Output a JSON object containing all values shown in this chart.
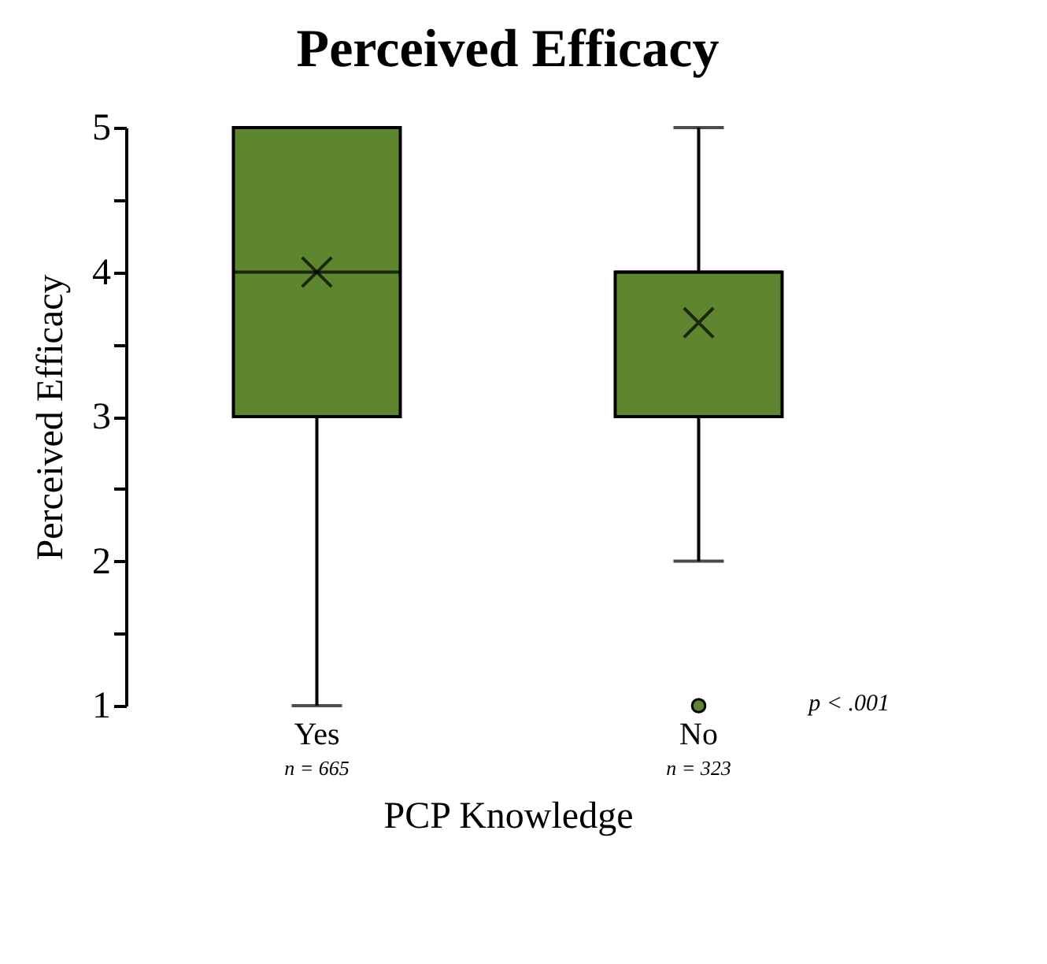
{
  "chart_data": {
    "type": "box",
    "title": "Perceived Efficacy",
    "xlabel": "PCP Knowledge",
    "ylabel": "Perceived Efficacy",
    "categories": [
      "Yes",
      "No"
    ],
    "series": [
      {
        "color": "#5e862e",
        "boxes": [
          {
            "low": 1,
            "q1": 3,
            "median": 4,
            "q3": 5,
            "high": 5,
            "mean": 4
          },
          {
            "low": 2,
            "q1": 3,
            "median": 4,
            "q3": 4,
            "high": 5,
            "mean": 3.65,
            "outliers": [
              1
            ]
          }
        ]
      }
    ],
    "ylim": [
      1,
      5
    ],
    "yticks": [
      1,
      {
        "value": 1.5,
        "label": null
      },
      2,
      {
        "value": 2.5,
        "label": null
      },
      3,
      {
        "value": 3.5,
        "label": null
      },
      4,
      {
        "value": 4.5,
        "label": null
      },
      5
    ],
    "annotations": [
      "n = 665",
      "n = 323",
      "p < .001"
    ],
    "grid": false
  }
}
